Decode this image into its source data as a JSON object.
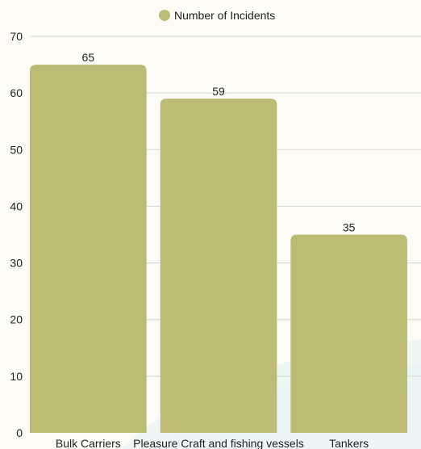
{
  "chart_data": {
    "type": "bar",
    "categories": [
      "Bulk Carriers",
      "Pleasure Craft and fishing vessels",
      "Tankers"
    ],
    "series": [
      {
        "name": "Number of Incidents",
        "values": [
          65,
          59,
          35
        ]
      }
    ],
    "ylim": [
      0,
      70
    ],
    "yticks": [
      0,
      10,
      20,
      30,
      40,
      50,
      60,
      70
    ],
    "xlabel": "",
    "ylabel": "",
    "title": "",
    "grid": true,
    "legend_position": "top-center",
    "bar_color": "#bbbd76"
  }
}
